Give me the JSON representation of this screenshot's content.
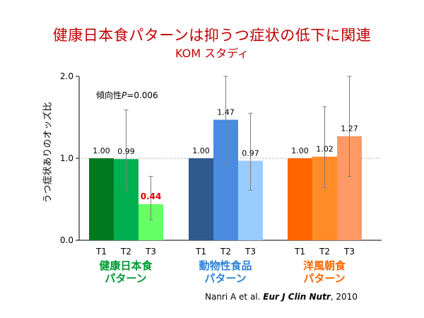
{
  "slide": {
    "title": "健康日本食パターンは抑うつ症状の低下に関連",
    "subtitle": "KOM スタディ",
    "trend_prefix": "傾向性",
    "trend_p": "P",
    "trend_value": "=0.006",
    "citation_authors": "Nanri A et al.",
    "citation_journal": "Eur J Clin Nutr",
    "citation_year": ", 2010"
  },
  "colors": {
    "title": "#c00000",
    "highlight_label": "#e00000",
    "green": [
      "#007a1f",
      "#00b050",
      "#66ff66"
    ],
    "blue": [
      "#2e5a8e",
      "#4a8be0",
      "#99ccff"
    ],
    "orange": [
      "#ff6600",
      "#ff8c26",
      "#ff9966"
    ]
  },
  "chart_data": {
    "type": "bar",
    "title": "",
    "ylabel": "うつ症状ありのオッズ比",
    "xlabel": "",
    "ylim": [
      0,
      2.0
    ],
    "yticks": [
      "0.0",
      "1.0",
      "2.0"
    ],
    "reference_line": 1.0,
    "groups": [
      {
        "name_line1": "健康日本食",
        "name_line2": "パターン",
        "color": "#009933",
        "categories": [
          "T1",
          "T2",
          "T3"
        ],
        "values": [
          1.0,
          0.99,
          0.44
        ],
        "labels": [
          "1.00",
          "0.99",
          "0.44"
        ],
        "ci_low": [
          null,
          0.61,
          0.25
        ],
        "ci_high": [
          null,
          1.59,
          0.78
        ],
        "highlight": [
          false,
          false,
          true
        ]
      },
      {
        "name_line1": "動物性食品",
        "name_line2": "パターン",
        "color": "#2f82d6",
        "categories": [
          "T1",
          "T2",
          "T3"
        ],
        "values": [
          1.0,
          1.47,
          0.97
        ],
        "labels": [
          "1.00",
          "1.47",
          "0.97"
        ],
        "ci_low": [
          null,
          0.92,
          0.61
        ],
        "ci_high": [
          null,
          2.0,
          1.55
        ],
        "highlight": [
          false,
          false,
          false
        ]
      },
      {
        "name_line1": "洋風朝食",
        "name_line2": "パターン",
        "color": "#ff6600",
        "categories": [
          "T1",
          "T2",
          "T3"
        ],
        "values": [
          1.0,
          1.02,
          1.27
        ],
        "labels": [
          "1.00",
          "1.02",
          "1.27"
        ],
        "ci_low": [
          null,
          0.64,
          0.78
        ],
        "ci_high": [
          null,
          1.63,
          2.0
        ],
        "highlight": [
          false,
          false,
          false
        ]
      }
    ]
  }
}
